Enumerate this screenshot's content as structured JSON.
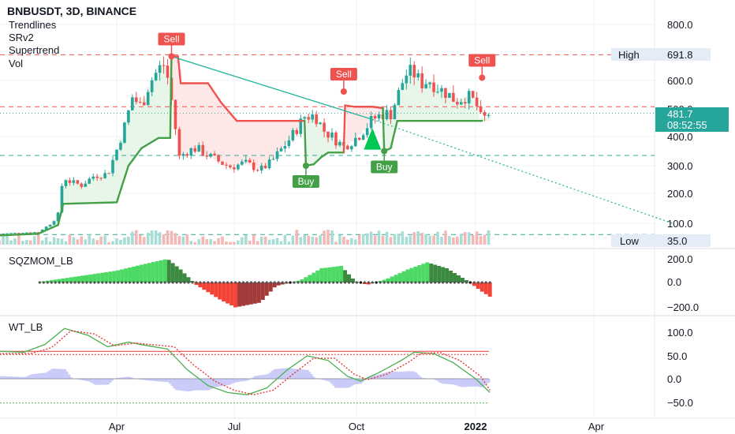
{
  "header": {
    "symbol": "BNBUSDT, 3D, BINANCE",
    "indicators": [
      "Trendlines",
      "SRv2",
      "Supertrend",
      "Vol"
    ]
  },
  "colors": {
    "up": "#26a69a",
    "down": "#ef5350",
    "supertrend_up": "#43a047",
    "supertrend_down": "#ef5350",
    "trendline": "#22b39a",
    "sr_line": "#ef5350",
    "low_line": "#2ea88f",
    "last_price_bg": "#26a69a",
    "label_bg": "#e3ecf7",
    "sqz_up_bright": "#4cd964",
    "sqz_up_dark": "#3b8a3f",
    "sqz_down_bright": "#f44336",
    "sqz_down_dark": "#a33a3a",
    "wt1": "#4caf50",
    "wt2": "#e53935",
    "wt_hist": "#8c8ff0"
  },
  "price_axis": {
    "ticks": [
      "800.0",
      "600.0",
      "500.0",
      "400.0",
      "300.0",
      "200.0",
      "100.0"
    ]
  },
  "price_labels": {
    "high_label": "High",
    "high_value": "691.8",
    "low_label": "Low",
    "low_value": "35.0",
    "last_price": "481.7",
    "countdown": "08:52:55"
  },
  "signals": [
    "Sell",
    "Sell",
    "Sell",
    "Buy",
    "Buy"
  ],
  "sqz": {
    "title": "SQZMOM_LB",
    "ticks": [
      "200.0",
      "0.0",
      "−200.0"
    ]
  },
  "wt": {
    "title": "WT_LB",
    "ticks": [
      "100.0",
      "50.0",
      "0.0",
      "−50.0"
    ]
  },
  "time_axis": {
    "labels": [
      "Apr",
      "Jul",
      "Oct",
      "2022",
      "Apr"
    ]
  },
  "chart_data": [
    {
      "type": "candlestick",
      "title": "BNBUSDT, 3D, BINANCE",
      "ylim": [
        30,
        830
      ],
      "x_range": [
        "2021-01-01",
        "2022-06-01"
      ],
      "close_series": [
        [
          "2021-01-01",
          40
        ],
        [
          "2021-01-15",
          45
        ],
        [
          "2021-01-31",
          50
        ],
        [
          "2021-02-10",
          100
        ],
        [
          "2021-02-15",
          130
        ],
        [
          "2021-02-19",
          260
        ],
        [
          "2021-02-25",
          240
        ],
        [
          "2021-03-05",
          230
        ],
        [
          "2021-03-15",
          265
        ],
        [
          "2021-03-25",
          270
        ],
        [
          "2021-04-01",
          355
        ],
        [
          "2021-04-08",
          450
        ],
        [
          "2021-04-13",
          540
        ],
        [
          "2021-04-20",
          505
        ],
        [
          "2021-04-26",
          590
        ],
        [
          "2021-05-03",
          640
        ],
        [
          "2021-05-08",
          660
        ],
        [
          "2021-05-12",
          560
        ],
        [
          "2021-05-19",
          330
        ],
        [
          "2021-05-25",
          350
        ],
        [
          "2021-06-01",
          360
        ],
        [
          "2021-06-10",
          335
        ],
        [
          "2021-06-20",
          310
        ],
        [
          "2021-06-28",
          295
        ],
        [
          "2021-07-08",
          310
        ],
        [
          "2021-07-20",
          285
        ],
        [
          "2021-07-28",
          310
        ],
        [
          "2021-08-05",
          355
        ],
        [
          "2021-08-13",
          400
        ],
        [
          "2021-08-23",
          470
        ],
        [
          "2021-08-31",
          475
        ],
        [
          "2021-09-07",
          420
        ],
        [
          "2021-09-13",
          400
        ],
        [
          "2021-09-22",
          365
        ],
        [
          "2021-09-30",
          390
        ],
        [
          "2021-10-05",
          410
        ],
        [
          "2021-10-14",
          460
        ],
        [
          "2021-10-22",
          480
        ],
        [
          "2021-10-28",
          480
        ],
        [
          "2021-11-02",
          540
        ],
        [
          "2021-11-08",
          620
        ],
        [
          "2021-11-14",
          630
        ],
        [
          "2021-11-20",
          590
        ],
        [
          "2021-11-27",
          600
        ],
        [
          "2021-12-04",
          570
        ],
        [
          "2021-12-10",
          555
        ],
        [
          "2021-12-17",
          525
        ],
        [
          "2021-12-25",
          545
        ],
        [
          "2022-01-01",
          520
        ],
        [
          "2022-01-06",
          450
        ],
        [
          "2022-01-10",
          480
        ],
        [
          "2022-01-12",
          481.7
        ]
      ],
      "high": 691.8,
      "low": 35.0,
      "last_price": 481.7,
      "supertrend": [
        [
          "2021-01-01",
          30
        ],
        [
          "2021-01-31",
          40
        ],
        [
          "2021-02-15",
          90
        ],
        [
          "2021-02-19",
          165
        ],
        [
          "2021-04-01",
          170
        ],
        [
          "2021-04-10",
          300
        ],
        [
          "2021-04-20",
          360
        ],
        [
          "2021-05-03",
          395
        ],
        [
          "2021-05-12",
          395
        ],
        [
          "2021-05-13",
          686
        ],
        [
          "2021-05-18",
          686
        ],
        [
          "2021-05-20",
          590
        ],
        [
          "2021-06-10",
          590
        ],
        [
          "2021-06-20",
          520
        ],
        [
          "2021-07-02",
          455
        ],
        [
          "2021-08-23",
          455
        ],
        [
          "2021-08-24",
          300
        ],
        [
          "2021-08-30",
          305
        ],
        [
          "2021-09-05",
          330
        ],
        [
          "2021-09-10",
          345
        ],
        [
          "2021-09-22",
          345
        ],
        [
          "2021-09-23",
          510
        ],
        [
          "2021-09-30",
          505
        ],
        [
          "2021-10-14",
          505
        ],
        [
          "2021-10-22",
          500
        ],
        [
          "2021-10-23",
          350
        ],
        [
          "2021-10-28",
          360
        ],
        [
          "2021-11-02",
          455
        ],
        [
          "2022-01-06",
          455
        ]
      ],
      "trendline": {
        "from": [
          "2021-05-13",
          686
        ],
        "to": [
          "2021-10-14",
          460
        ],
        "extended_to": [
          "2022-06-01",
          100
        ]
      },
      "resistance_levels": [
        691.8,
        505
      ],
      "support_levels": [
        335,
        35.0
      ],
      "signals": [
        {
          "type": "Sell",
          "x": "2021-05-13",
          "price": 686
        },
        {
          "type": "Sell",
          "x": "2021-09-22",
          "price": 560
        },
        {
          "type": "Sell",
          "x": "2022-01-06",
          "price": 610
        },
        {
          "type": "Buy",
          "x": "2021-08-24",
          "price": 300
        },
        {
          "type": "Buy",
          "x": "2021-10-23",
          "price": 350
        }
      ]
    },
    {
      "type": "bar",
      "title": "SQZMOM_LB",
      "ylim": [
        -250,
        250
      ],
      "series": [
        {
          "x": [
            "2021-02-01",
            "2021-03-01",
            "2021-04-01",
            "2021-04-20",
            "2021-05-10",
            "2021-05-20",
            "2021-06-01",
            "2021-06-20",
            "2021-07-01",
            "2021-07-20",
            "2021-08-01",
            "2021-08-20",
            "2021-09-05",
            "2021-09-20",
            "2021-10-01",
            "2021-10-10",
            "2021-10-25",
            "2021-11-10",
            "2021-11-25",
            "2021-12-10",
            "2021-12-25",
            "2022-01-05",
            "2022-01-12"
          ],
          "values": [
            5,
            50,
            100,
            150,
            200,
            110,
            -20,
            -150,
            -210,
            -170,
            -30,
            20,
            120,
            140,
            10,
            -20,
            30,
            110,
            170,
            120,
            20,
            -70,
            -120
          ]
        }
      ]
    },
    {
      "type": "line",
      "title": "WT_LB",
      "ylim": [
        -55,
        115
      ],
      "series": [
        {
          "x": [
            "2021-01-01",
            "2021-01-20",
            "2021-02-05",
            "2021-02-20",
            "2021-03-10",
            "2021-03-25",
            "2021-04-10",
            "2021-04-25",
            "2021-05-10",
            "2021-05-25",
            "2021-06-10",
            "2021-06-25",
            "2021-07-10",
            "2021-07-25",
            "2021-08-10",
            "2021-08-25",
            "2021-09-10",
            "2021-09-25",
            "2021-10-05",
            "2021-10-20",
            "2021-11-05",
            "2021-11-15",
            "2021-11-30",
            "2021-12-15",
            "2022-01-01",
            "2022-01-12"
          ],
          "values": [
            60,
            58,
            75,
            110,
            95,
            70,
            80,
            72,
            65,
            20,
            -15,
            -30,
            -35,
            -20,
            20,
            50,
            40,
            5,
            -5,
            15,
            40,
            58,
            55,
            35,
            0,
            -30
          ]
        },
        {
          "x": [
            "2021-01-01",
            "2021-01-25",
            "2021-02-10",
            "2021-02-25",
            "2021-03-15",
            "2021-03-30",
            "2021-04-15",
            "2021-04-30",
            "2021-05-15",
            "2021-05-30",
            "2021-06-15",
            "2021-06-30",
            "2021-07-15",
            "2021-07-30",
            "2021-08-15",
            "2021-08-30",
            "2021-09-15",
            "2021-09-30",
            "2021-10-10",
            "2021-10-25",
            "2021-11-10",
            "2021-11-20",
            "2021-12-05",
            "2021-12-20",
            "2022-01-05",
            "2022-01-12"
          ],
          "values": [
            55,
            55,
            68,
            105,
            98,
            72,
            78,
            74,
            70,
            30,
            -5,
            -25,
            -35,
            -25,
            12,
            45,
            45,
            10,
            -2,
            10,
            35,
            55,
            57,
            40,
            5,
            -25
          ]
        }
      ],
      "levels": [
        60,
        53,
        -53
      ]
    }
  ]
}
